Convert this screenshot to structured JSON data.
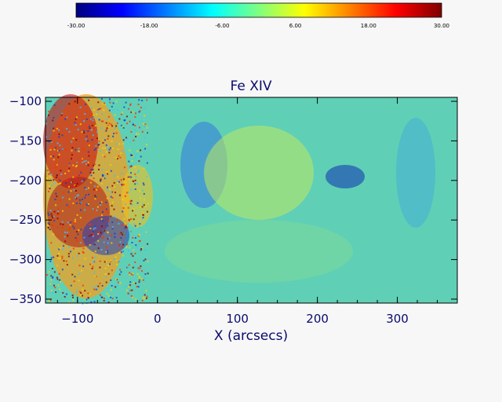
{
  "figure": {
    "title": "Fe XIV",
    "x_axis_label": "X (arcsecs)",
    "y_axis_label": "",
    "colorbar": {
      "min": -30,
      "max": 30,
      "tick_labels": [
        "-30.00",
        "-18.00",
        "-6.00",
        "6.00",
        "18.00",
        "30.00"
      ],
      "tick_values": [
        -30,
        -18,
        -6,
        6,
        18,
        30
      ],
      "colormap": "jet"
    },
    "x_range": [
      -140,
      375
    ],
    "y_range": [
      -355,
      -95
    ],
    "x_ticks": [
      -100,
      0,
      100,
      200,
      300
    ],
    "y_ticks": [
      -100,
      -150,
      -200,
      -250,
      -300,
      -350
    ],
    "x_tick_labels": [
      "−100",
      "0",
      "100",
      "200",
      "300"
    ],
    "y_tick_labels": [
      "−100",
      "−150",
      "−200",
      "−250",
      "−300",
      "−350"
    ]
  },
  "colors": {
    "text": "#0a0a6e",
    "background": "#f7f7f7",
    "jet_stops": [
      "#00007f",
      "#0000ff",
      "#007fff",
      "#00ffff",
      "#7fff7f",
      "#ffff00",
      "#ff7f00",
      "#ff0000",
      "#7f0000"
    ]
  }
}
